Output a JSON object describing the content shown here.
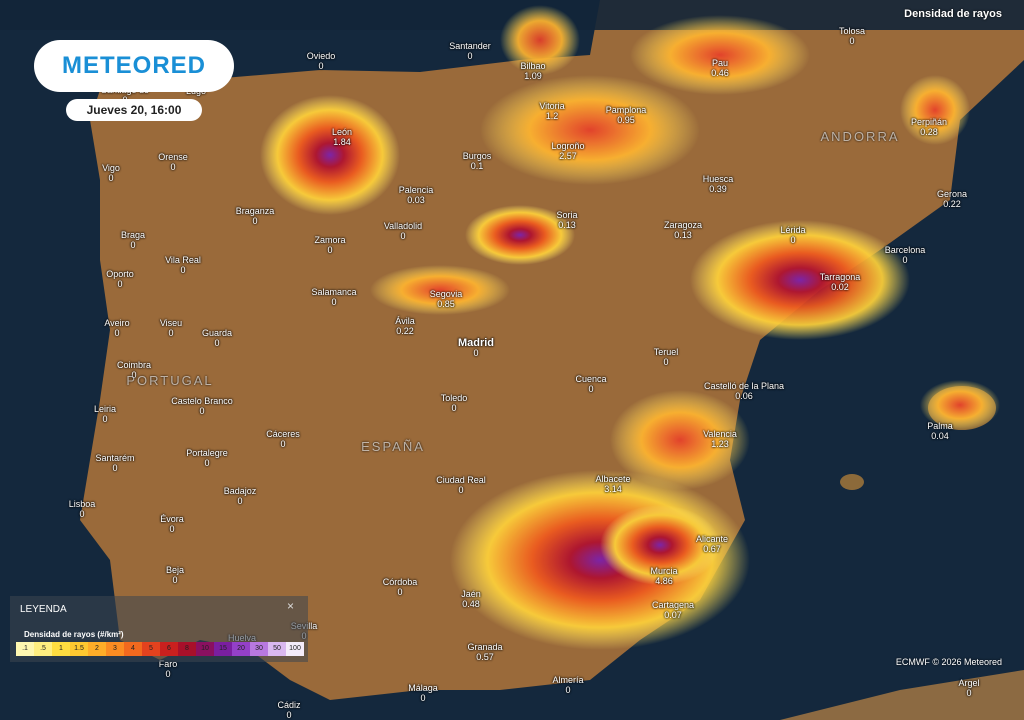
{
  "header": {
    "logo": "METEORED",
    "datetime": "Jueves 20, 16:00",
    "layer": "Densidad de rayos"
  },
  "legend": {
    "title": "LEYENDA",
    "close": "×",
    "subtitle": "Densidad de rayos (#/km²)",
    "scale": [
      {
        "label": ".1",
        "color": "#fff7b0"
      },
      {
        "label": ".5",
        "color": "#ffee80"
      },
      {
        "label": "1",
        "color": "#ffdd40"
      },
      {
        "label": "1.5",
        "color": "#ffc830"
      },
      {
        "label": "2",
        "color": "#ffad28"
      },
      {
        "label": "3",
        "color": "#fb8c22"
      },
      {
        "label": "4",
        "color": "#f2691e"
      },
      {
        "label": "5",
        "color": "#e3421e"
      },
      {
        "label": "6",
        "color": "#c9201e"
      },
      {
        "label": "8",
        "color": "#a8102a"
      },
      {
        "label": "10",
        "color": "#8a1060"
      },
      {
        "label": "15",
        "color": "#7a1fa0"
      },
      {
        "label": "20",
        "color": "#9440c8"
      },
      {
        "label": "30",
        "color": "#b878e0"
      },
      {
        "label": "50",
        "color": "#dab8f0"
      },
      {
        "label": "100",
        "color": "#f4ecfa"
      }
    ]
  },
  "regions": [
    "PORTUGAL",
    "ESPAÑA",
    "ANDORRA"
  ],
  "cities": [
    {
      "name": "Santander",
      "value": 0
    },
    {
      "name": "Bilbao",
      "value": 1.09
    },
    {
      "name": "Pau",
      "value": 0.46
    },
    {
      "name": "Tolosa",
      "value": 0
    },
    {
      "name": "Oviedo",
      "value": 0
    },
    {
      "name": "Santiago de",
      "value": 0
    },
    {
      "name": "Lugo"
    },
    {
      "name": "León",
      "value": 1.84
    },
    {
      "name": "Vitoria",
      "value": 1.2
    },
    {
      "name": "Pamplona",
      "value": 0.95
    },
    {
      "name": "Perpiñán",
      "value": 0.28
    },
    {
      "name": "Vigo",
      "value": 0
    },
    {
      "name": "Orense",
      "value": 0
    },
    {
      "name": "Burgos",
      "value": 0.1
    },
    {
      "name": "Logroño",
      "value": 2.57
    },
    {
      "name": "Huesca",
      "value": 0.39
    },
    {
      "name": "Palencia",
      "value": 0.03
    },
    {
      "name": "Gerona",
      "value": 0.22
    },
    {
      "name": "Braganza",
      "value": 0
    },
    {
      "name": "Soria",
      "value": 0.13
    },
    {
      "name": "Zaragoza",
      "value": 0.13
    },
    {
      "name": "Braga",
      "value": 0
    },
    {
      "name": "Valladolid",
      "value": 0
    },
    {
      "name": "Lérida",
      "value": 0
    },
    {
      "name": "Zamora",
      "value": 0
    },
    {
      "name": "Barcelona",
      "value": 0
    },
    {
      "name": "Vila Real",
      "value": 0
    },
    {
      "name": "Oporto",
      "value": 0
    },
    {
      "name": "Tarragona",
      "value": 0.02
    },
    {
      "name": "Salamanca",
      "value": 0
    },
    {
      "name": "Segovia",
      "value": 0.85
    },
    {
      "name": "Aveiro",
      "value": 0
    },
    {
      "name": "Viseu",
      "value": 0
    },
    {
      "name": "Guarda",
      "value": 0
    },
    {
      "name": "Ávila",
      "value": 0.22
    },
    {
      "name": "Madrid",
      "value": 0
    },
    {
      "name": "Teruel",
      "value": 0
    },
    {
      "name": "Coimbra",
      "value": 0
    },
    {
      "name": "Cuenca",
      "value": 0
    },
    {
      "name": "Castelló de la Plana",
      "value": 0.06
    },
    {
      "name": "Leiria",
      "value": 0
    },
    {
      "name": "Castelo Branco",
      "value": 0
    },
    {
      "name": "Toledo",
      "value": 0
    },
    {
      "name": "Palma",
      "value": 0.04
    },
    {
      "name": "Cáceres",
      "value": 0
    },
    {
      "name": "Valencia",
      "value": 1.23
    },
    {
      "name": "Portalegre",
      "value": 0
    },
    {
      "name": "Santarém",
      "value": 0
    },
    {
      "name": "Ciudad Real",
      "value": 0
    },
    {
      "name": "Albacete",
      "value": 3.14
    },
    {
      "name": "Badajoz",
      "value": 0
    },
    {
      "name": "Lisboa",
      "value": 0
    },
    {
      "name": "Évora",
      "value": 0
    },
    {
      "name": "Alicante",
      "value": 0.67
    },
    {
      "name": "Murcia",
      "value": 4.86
    },
    {
      "name": "Beja",
      "value": 0
    },
    {
      "name": "Córdoba",
      "value": 0
    },
    {
      "name": "Jaén",
      "value": 0.48
    },
    {
      "name": "Cartagena",
      "value": 0.07
    },
    {
      "name": "Sevilla",
      "value": 0
    },
    {
      "name": "Huelva"
    },
    {
      "name": "Granada",
      "value": 0.57
    },
    {
      "name": "Faro",
      "value": 0
    },
    {
      "name": "Almería",
      "value": 0
    },
    {
      "name": "Málaga",
      "value": 0
    },
    {
      "name": "Argel",
      "value": 0
    },
    {
      "name": "Cádiz",
      "value": 0
    }
  ],
  "footer": {
    "attribution": "ECMWF © 2026 Meteored"
  }
}
